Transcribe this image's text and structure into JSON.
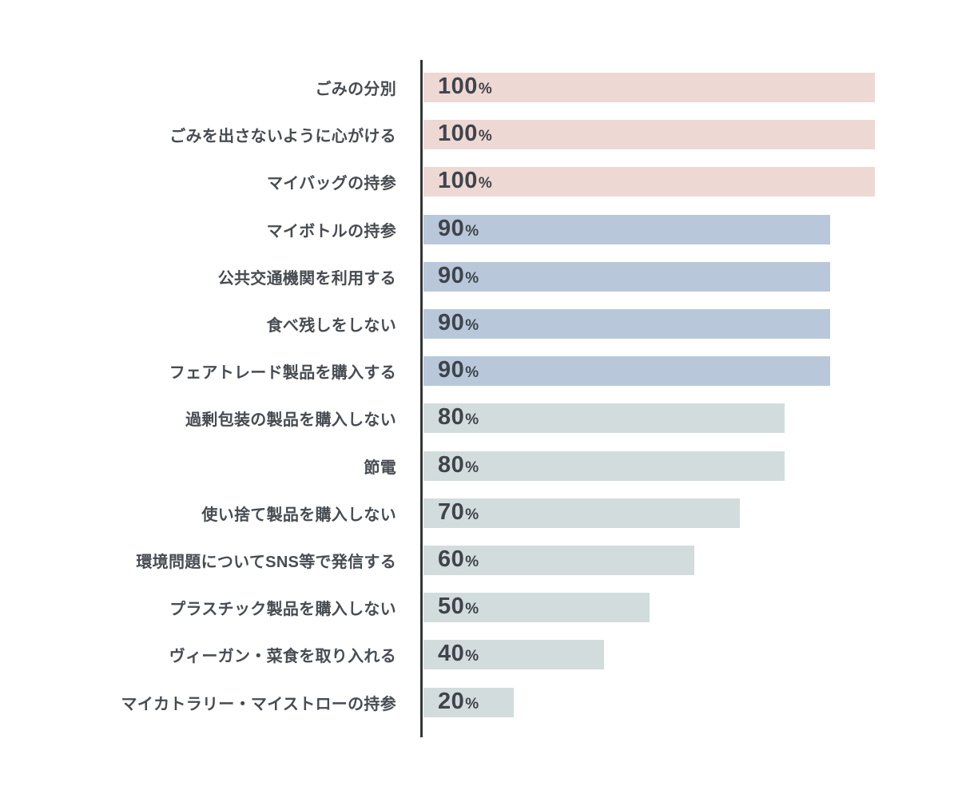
{
  "chart_data": {
    "type": "bar",
    "orientation": "horizontal",
    "title": "",
    "xlabel": "",
    "ylabel": "",
    "unit": "%",
    "xlim": [
      0,
      100
    ],
    "grid": false,
    "legend": "none",
    "bar_label_position": "inside-left",
    "categories": [
      "ごみの分別",
      "ごみを出さないように心がける",
      "マイバッグの持参",
      "マイボトルの持参",
      "公共交通機関を利用する",
      "食べ残しをしない",
      "フェアトレード製品を購入する",
      "過剰包装の製品を購入しない",
      "節電",
      "使い捨て製品を購入しない",
      "環境問題についてSNS等で発信する",
      "プラスチック製品を購入しない",
      "ヴィーガン・菜食を取り入れる",
      "マイカトラリー・マイストローの持参"
    ],
    "values": [
      100,
      100,
      100,
      90,
      90,
      90,
      90,
      80,
      80,
      70,
      60,
      50,
      40,
      20
    ],
    "value_labels": [
      "100%",
      "100%",
      "100%",
      "90%",
      "90%",
      "90%",
      "90%",
      "80%",
      "80%",
      "70%",
      "60%",
      "50%",
      "40%",
      "20%"
    ],
    "colors": [
      "#eed8d4",
      "#eed8d4",
      "#eed8d4",
      "#b8c8da",
      "#b8c8da",
      "#b8c8da",
      "#b8c8da",
      "#d3dcdc",
      "#d3dcdc",
      "#d3dcdc",
      "#d3dcdc",
      "#d3dcdc",
      "#d3dcdc",
      "#d3dcdc"
    ],
    "palette": {
      "pink_100": "#eed8d4",
      "blue_90": "#b8c8da",
      "gray_below_80": "#d3dcdc"
    },
    "label_text_color": "#474c52",
    "value_text_color": "#3f444b",
    "axis_line_color": "#333538",
    "background_color": "#ffffff"
  }
}
